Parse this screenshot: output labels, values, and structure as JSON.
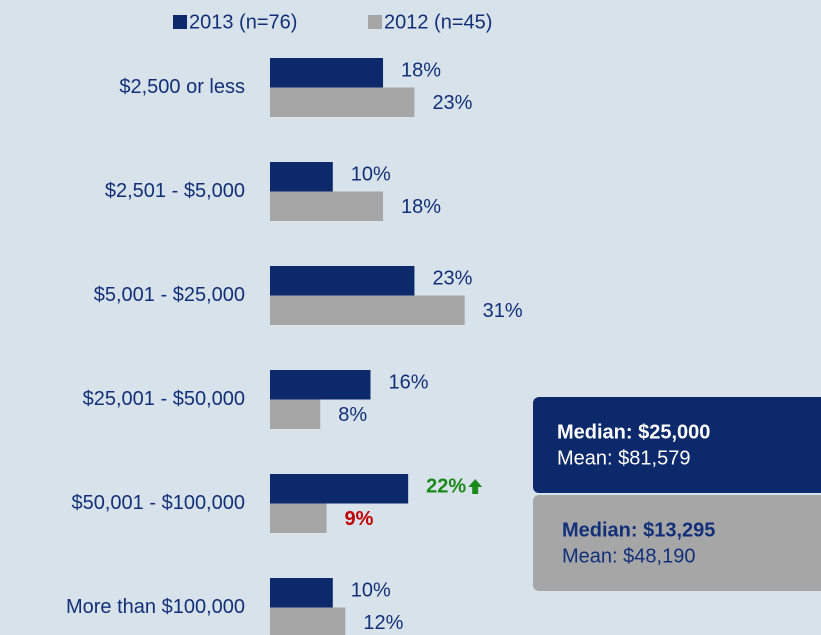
{
  "chart_data": {
    "type": "hbar",
    "categories": [
      "$2,500 or less",
      "$2,501 - $5,000",
      "$5,001 - $25,000",
      "$25,001 - $50,000",
      "$50,001 - $100,000",
      "More than $100,000"
    ],
    "series": [
      {
        "name": "2013 (n=76)",
        "color": "#0c2a6b",
        "values": [
          18,
          10,
          23,
          16,
          22,
          10
        ],
        "value_labels": [
          "18%",
          "10%",
          "23%",
          "16%",
          "22%",
          "10%"
        ]
      },
      {
        "name": "2012 (n=45)",
        "color": "#a6a6a6",
        "values": [
          23,
          18,
          31,
          8,
          9,
          12
        ],
        "value_labels": [
          "23%",
          "18%",
          "31%",
          "8%",
          "9%",
          "12%"
        ]
      }
    ],
    "annotations": [
      {
        "lines": [
          "Median: $25,000",
          "Mean: $81,579"
        ],
        "color": "#0c2a6b"
      },
      {
        "lines": [
          "Median: $13,295",
          "Mean: $48,190"
        ],
        "color": "#a6a6a6"
      }
    ]
  }
}
